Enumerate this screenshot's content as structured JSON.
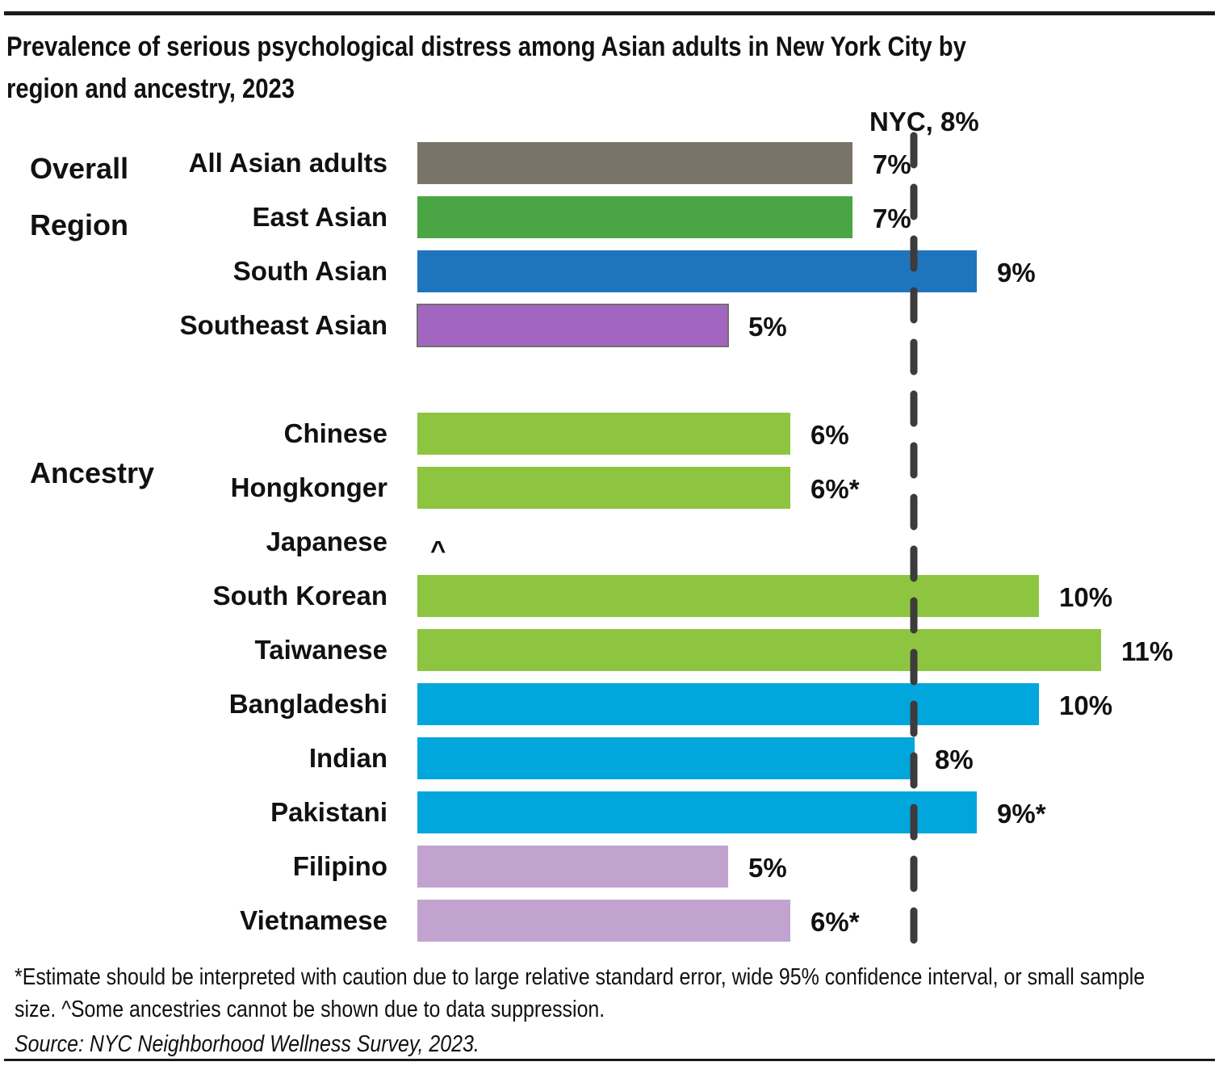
{
  "chart_data": {
    "type": "bar",
    "orientation": "horizontal",
    "title": "Prevalence of serious psychological distress among Asian adults in New York City by region and ancestry, 2023",
    "groups": [
      {
        "label": "Overall",
        "start_index": 0
      },
      {
        "label": "Region",
        "start_index": 1
      },
      {
        "label": "Ancestry",
        "start_index": 4
      }
    ],
    "categories": [
      "All Asian adults",
      "East Asian",
      "South Asian",
      "Southeast Asian",
      "Chinese",
      "Hongkonger",
      "Japanese",
      "South Korean",
      "Taiwanese",
      "Bangladeshi",
      "Indian",
      "Pakistani",
      "Filipino",
      "Vietnamese"
    ],
    "values": [
      7,
      7,
      9,
      5,
      6,
      6,
      null,
      10,
      11,
      10,
      8,
      9,
      5,
      6
    ],
    "value_labels": [
      "7%",
      "7%",
      "9%",
      "5%",
      "6%",
      "6%*",
      "^",
      "10%",
      "11%",
      "10%",
      "8%",
      "9%*",
      "5%",
      "6%*"
    ],
    "colors": [
      "#7a7367",
      "#4aa545",
      "#1f75bd",
      "#a366c0",
      "#8dc540",
      "#8dc540",
      "#8dc540",
      "#8dc540",
      "#8dc540",
      "#00a6dc",
      "#00a6dc",
      "#00a6dc",
      "#c2a3cf",
      "#c2a3cf"
    ],
    "reference_line": {
      "value": 8,
      "label": "NYC, 8%",
      "style": "dashed",
      "color": "#3d3b3b"
    },
    "xlim": [
      0,
      11
    ],
    "axis_visible": false,
    "grid": false,
    "legend": "none"
  },
  "footnote": "*Estimate should be interpreted with caution due to large relative standard error, wide 95% confidence interval, or small sample size. ^Some ancestries cannot be shown due to data suppression.",
  "source": "Source: NYC Neighborhood Wellness Survey, 2023."
}
